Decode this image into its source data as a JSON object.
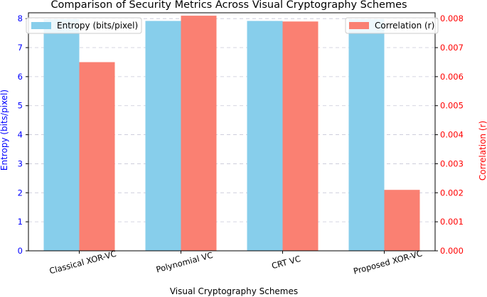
{
  "chart_data": {
    "type": "bar",
    "title": "Comparison of Security Metrics Across Visual Cryptography Schemes",
    "xlabel": "Visual Cryptography Schemes",
    "categories": [
      "Classical XOR-VC",
      "Polynomial VC",
      "CRT VC",
      "Proposed XOR-VC"
    ],
    "series": [
      {
        "name": "Entropy (bits/pixel)",
        "axis": "left",
        "color": "#87CEEB",
        "values": [
          7.98,
          7.92,
          7.92,
          7.98
        ]
      },
      {
        "name": "Correlation (r)",
        "axis": "right",
        "color": "#FA8072",
        "values": [
          0.0065,
          0.0081,
          0.0079,
          0.0021
        ]
      }
    ],
    "y_left": {
      "label": "Entropy (bits/pixel)",
      "color": "#0000FF",
      "ylim": [
        0,
        8.2
      ],
      "ticks": [
        "0",
        "1",
        "2",
        "3",
        "4",
        "5",
        "6",
        "7",
        "8"
      ]
    },
    "y_right": {
      "label": "Correlation (r)",
      "color": "#FF0000",
      "ylim": [
        0,
        0.0082
      ],
      "ticks": [
        "0.000",
        "0.001",
        "0.002",
        "0.003",
        "0.004",
        "0.005",
        "0.006",
        "0.007",
        "0.008"
      ]
    },
    "grid": "horizontal dashed",
    "legends": [
      {
        "series": "Entropy (bits/pixel)",
        "placement": "top-left"
      },
      {
        "series": "Correlation (r)",
        "placement": "top-right"
      }
    ]
  }
}
